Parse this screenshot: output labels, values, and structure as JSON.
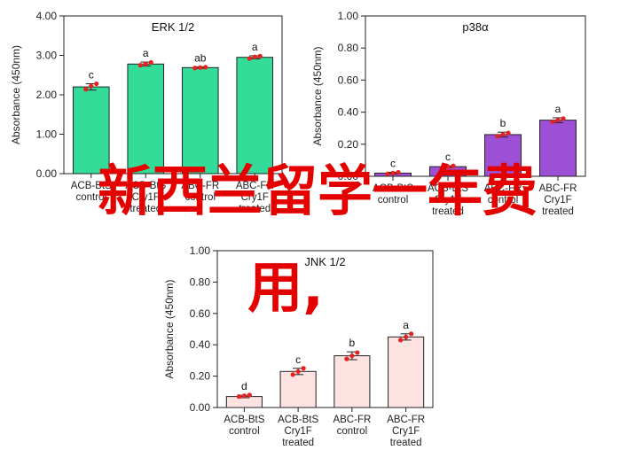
{
  "chart_data": [
    {
      "type": "bar",
      "title": "ERK 1/2",
      "ylabel": "Absorbance (450nm)",
      "ylim": [
        0,
        4
      ],
      "yticks": [
        "0.00",
        "1.00",
        "2.00",
        "3.00",
        "4.00"
      ],
      "ytick_values": [
        0,
        1,
        2,
        3,
        4
      ],
      "categories": [
        [
          "ACB-BtS",
          "control"
        ],
        [
          "ACB-BtS",
          "Cry1F",
          "treated"
        ],
        [
          "ABC-FR",
          "control"
        ],
        [
          "ABC-FR",
          "Cry1F",
          "treated"
        ]
      ],
      "values": [
        2.2,
        2.78,
        2.69,
        2.95
      ],
      "errors": [
        0.08,
        0.05,
        0.02,
        0.04
      ],
      "points": [
        [
          2.14,
          2.22,
          2.28
        ],
        [
          2.75,
          2.78,
          2.82
        ],
        [
          2.68,
          2.69,
          2.7
        ],
        [
          2.92,
          2.96,
          2.98
        ]
      ],
      "significance": [
        "c",
        "a",
        "ab",
        "a"
      ],
      "bar_color": "#33dd99",
      "grid": false
    },
    {
      "type": "bar",
      "title": "p38α",
      "ylabel": "Absorbance (450nm)",
      "ylim": [
        0,
        1
      ],
      "yticks": [
        "0.00",
        "0.20",
        "0.40",
        "0.60",
        "0.80",
        "1.00"
      ],
      "ytick_values": [
        0,
        0.2,
        0.4,
        0.6,
        0.8,
        1.0
      ],
      "categories": [
        [
          "ACB-BtS",
          "control"
        ],
        [
          "ACB-BtS",
          "Cry1F",
          "treated"
        ],
        [
          "ABC-FR",
          "control"
        ],
        [
          "ABC-FR",
          "Cry1F",
          "treated"
        ]
      ],
      "values": [
        0.02,
        0.06,
        0.26,
        0.35
      ],
      "errors": [
        0.005,
        0.005,
        0.015,
        0.015
      ],
      "points": [
        [
          0.015,
          0.02,
          0.025
        ],
        [
          0.055,
          0.06,
          0.065
        ],
        [
          0.25,
          0.26,
          0.27
        ],
        [
          0.34,
          0.35,
          0.36
        ]
      ],
      "significance": [
        "c",
        "c",
        "b",
        "a"
      ],
      "bar_color": "#9d4fd6",
      "grid": false
    },
    {
      "type": "bar",
      "title": "JNK 1/2",
      "ylabel": "Absorbance (450nm)",
      "ylim": [
        0,
        1
      ],
      "yticks": [
        "0.00",
        "0.20",
        "0.40",
        "0.60",
        "0.80",
        "1.00"
      ],
      "ytick_values": [
        0,
        0.2,
        0.4,
        0.6,
        0.8,
        1.0
      ],
      "categories": [
        [
          "ACB-BtS",
          "control"
        ],
        [
          "ACB-BtS",
          "Cry1F",
          "treated"
        ],
        [
          "ABC-FR",
          "control"
        ],
        [
          "ABC-FR",
          "Cry1F",
          "treated"
        ]
      ],
      "values": [
        0.07,
        0.23,
        0.33,
        0.45
      ],
      "errors": [
        0.008,
        0.02,
        0.025,
        0.02
      ],
      "points": [
        [
          0.07,
          0.075,
          0.08
        ],
        [
          0.21,
          0.23,
          0.25
        ],
        [
          0.31,
          0.33,
          0.35
        ],
        [
          0.43,
          0.45,
          0.47
        ]
      ],
      "significance": [
        "d",
        "c",
        "b",
        "a"
      ],
      "bar_color": "#fde2e2",
      "grid": false
    }
  ],
  "watermark": {
    "line1": "新西兰留学一年费",
    "line2": "用,"
  },
  "colors": {
    "dot": "#e8201e",
    "watermark": "#e50000"
  }
}
